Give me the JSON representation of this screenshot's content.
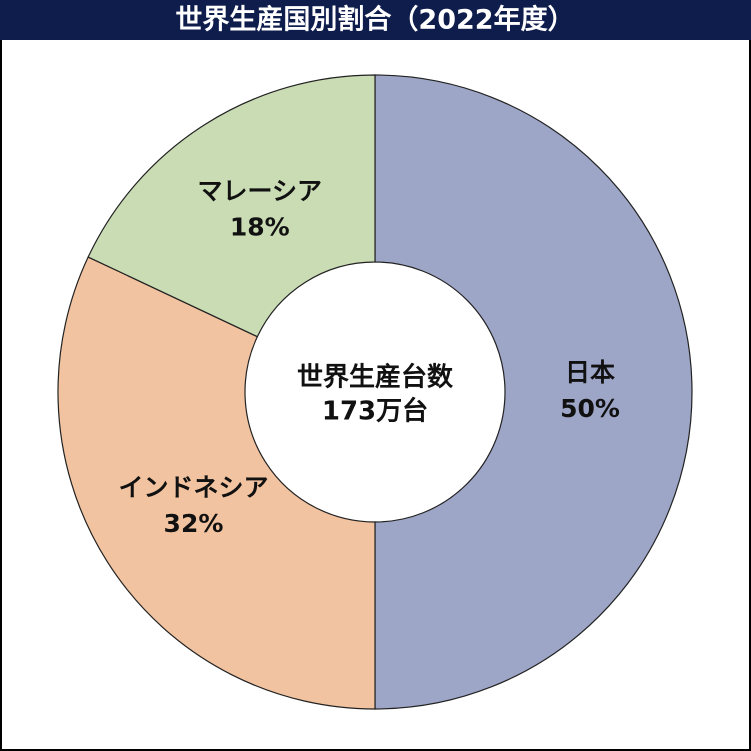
{
  "chart_data": {
    "type": "donut",
    "title": "世界生産国別割合（2022年度）",
    "center_text": [
      "世界生産台数",
      "173万台"
    ],
    "categories": [
      "日本",
      "インドネシア",
      "マレーシア"
    ],
    "values": [
      50,
      32,
      18
    ],
    "value_labels": [
      "50%",
      "32%",
      "18%"
    ],
    "colors": [
      "#9ea6c8",
      "#f2c3a0",
      "#c9dcb4"
    ]
  }
}
